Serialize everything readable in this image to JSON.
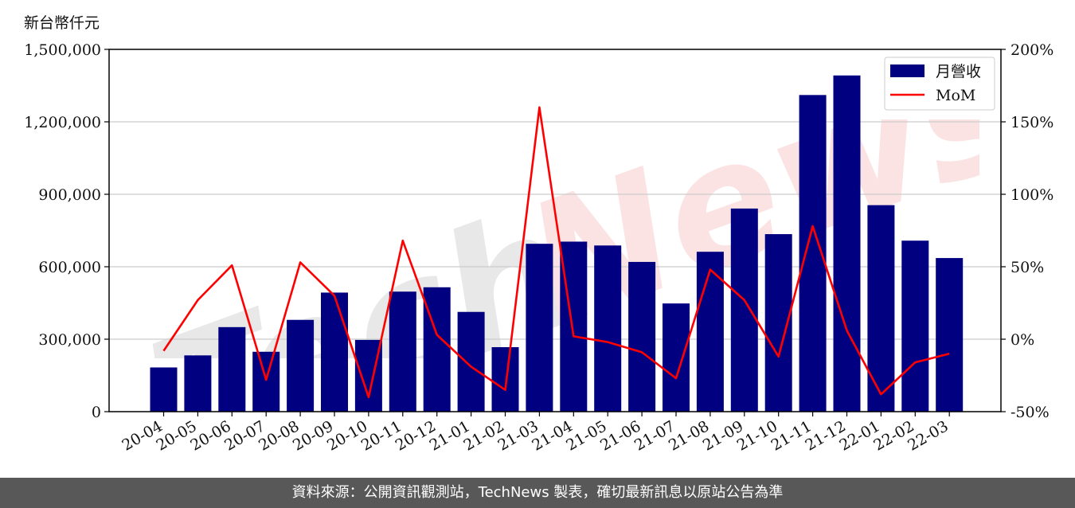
{
  "unit_label": "新台幣仟元",
  "footer_text": "資料來源：公開資訊觀測站，TechNews 製表，確切最新訊息以原站公告為準",
  "watermark": {
    "text": "TechNews"
  },
  "colors": {
    "bar": "#000080",
    "line": "#ff0000",
    "grid": "#cccccc",
    "footer_bg": "#585858"
  },
  "chart_data": {
    "type": "bar",
    "categories": [
      "20-04",
      "20-05",
      "20-06",
      "20-07",
      "20-08",
      "20-09",
      "20-10",
      "20-11",
      "20-12",
      "21-01",
      "21-02",
      "21-03",
      "21-04",
      "21-05",
      "21-06",
      "21-07",
      "21-08",
      "21-09",
      "21-10",
      "21-11",
      "21-12",
      "22-01",
      "22-02",
      "22-03"
    ],
    "series": [
      {
        "name": "月營收",
        "type": "bar",
        "axis": "left",
        "values": [
          183000,
          233000,
          350000,
          248000,
          380000,
          493000,
          297000,
          497000,
          515000,
          413000,
          267000,
          695000,
          704000,
          688000,
          620000,
          448000,
          662000,
          841000,
          735000,
          1311000,
          1392000,
          855000,
          708000,
          636000
        ]
      },
      {
        "name": "MoM",
        "type": "line",
        "axis": "right",
        "unit": "%",
        "values": [
          -8,
          27,
          51,
          -28,
          53,
          30,
          -40,
          68,
          3,
          -19,
          -35,
          160,
          2,
          -2,
          -9,
          -27,
          48,
          27,
          -12,
          78,
          6,
          -38,
          -16,
          -10
        ]
      }
    ],
    "y_left": {
      "ticks": [
        "0",
        "300,000",
        "600,000",
        "900,000",
        "1,200,000",
        "1,500,000"
      ],
      "range": [
        0,
        1500000
      ]
    },
    "y_right": {
      "ticks": [
        "-50%",
        "0%",
        "50%",
        "100%",
        "150%",
        "200%"
      ],
      "range": [
        -50,
        200
      ]
    },
    "grid": "horizontal",
    "legend": {
      "position": "top-right",
      "entries": [
        "月營收",
        "MoM"
      ]
    }
  }
}
